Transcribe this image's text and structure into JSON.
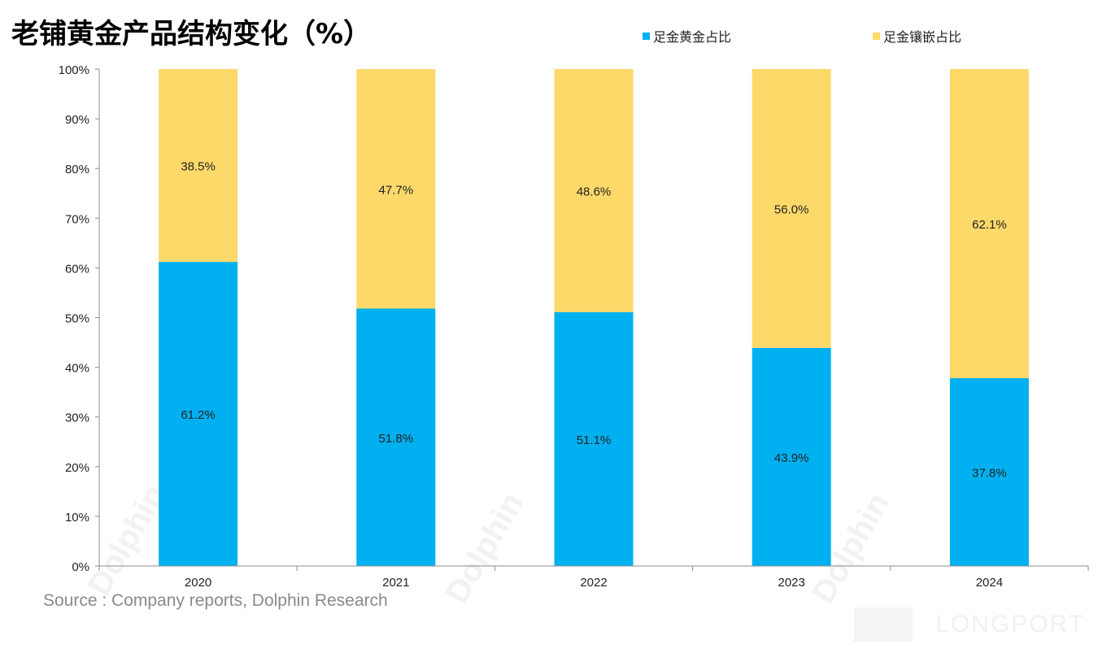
{
  "chart_data": {
    "type": "bar",
    "stacked": true,
    "title": "老铺黄金产品结构变化（%）",
    "categories": [
      "2020",
      "2021",
      "2022",
      "2023",
      "2024"
    ],
    "series": [
      {
        "name": "足金黄金占比",
        "values": [
          61.2,
          51.8,
          51.1,
          43.9,
          37.8
        ],
        "labels": [
          "61.2%",
          "51.8%",
          "51.1%",
          "43.9%",
          "37.8%"
        ],
        "color": "#00b0f0"
      },
      {
        "name": "足金镶嵌占比",
        "values": [
          38.5,
          47.7,
          48.6,
          56.0,
          62.1
        ],
        "labels": [
          "38.5%",
          "47.7%",
          "48.6%",
          "56.0%",
          "62.1%"
        ],
        "color": "#fdd96a"
      }
    ],
    "ylim": [
      0,
      100
    ],
    "yticks": [
      "0%",
      "10%",
      "20%",
      "30%",
      "40%",
      "50%",
      "60%",
      "70%",
      "80%",
      "90%",
      "100%"
    ],
    "legend_position": "top-right",
    "grid": false,
    "source": "Source : Company reports, Dolphin Research"
  },
  "watermark": {
    "brand": "LONGPORT",
    "text": "Dolphin"
  }
}
